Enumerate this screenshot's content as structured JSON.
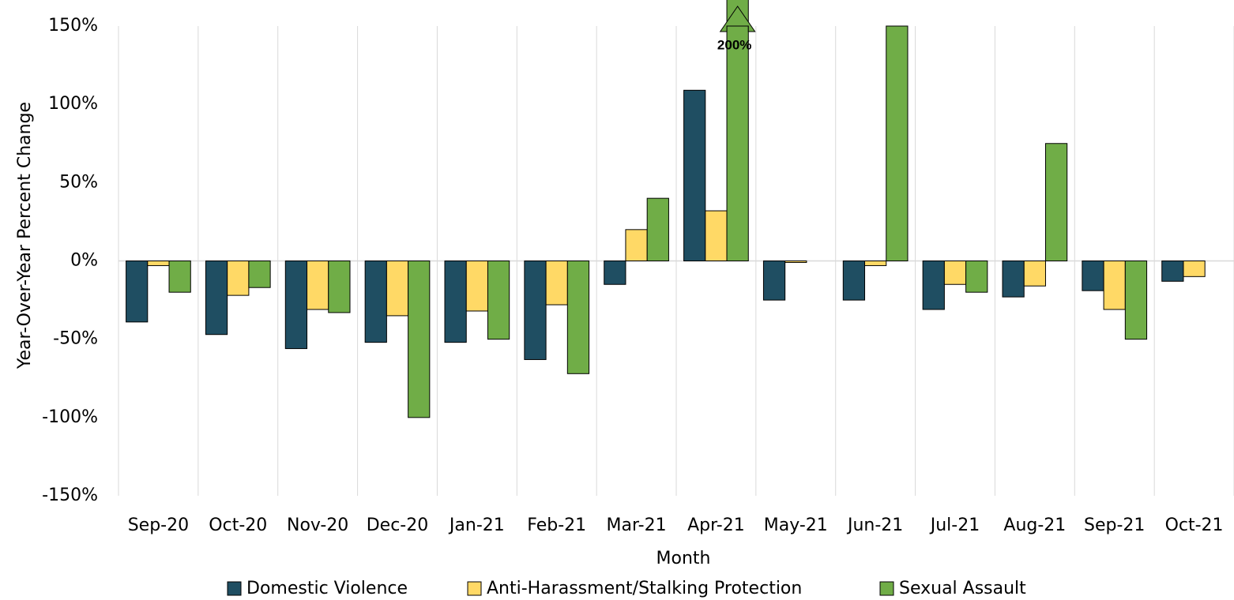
{
  "chart_data": {
    "type": "bar",
    "x_label": "Month",
    "y_label": "Year-Over-Year Percent Change",
    "categories": [
      "Sep-20",
      "Oct-20",
      "Nov-20",
      "Dec-20",
      "Jan-21",
      "Feb-21",
      "Mar-21",
      "Apr-21",
      "May-21",
      "Jun-21",
      "Jul-21",
      "Aug-21",
      "Sep-21",
      "Oct-21"
    ],
    "series": [
      {
        "name": "Domestic Violence",
        "color": "#1f4e62",
        "values": [
          -39,
          -47,
          -56,
          -52,
          -52,
          -63,
          -15,
          109,
          -25,
          -25,
          -31,
          -23,
          -19,
          -13
        ]
      },
      {
        "name": "Anti-Harassment/Stalking Protection",
        "color": "#ffd966",
        "values": [
          -3,
          -22,
          -31,
          -35,
          -32,
          -28,
          20,
          32,
          -1,
          -3,
          -15,
          -16,
          -31,
          -10
        ]
      },
      {
        "name": "Sexual Assault",
        "color": "#70ad47",
        "values": [
          -20,
          -17,
          -33,
          -100,
          -50,
          -72,
          40,
          200,
          null,
          150,
          -20,
          75,
          -50,
          null
        ],
        "value_labels": [
          null,
          null,
          null,
          null,
          null,
          null,
          null,
          "200%",
          null,
          null,
          null,
          null,
          null,
          null
        ]
      }
    ],
    "ylim": [
      -150,
      150
    ],
    "yticks": [
      {
        "value": -150,
        "label": "-150%"
      },
      {
        "value": -100,
        "label": "-100%"
      },
      {
        "value": -50,
        "label": "-50%"
      },
      {
        "value": 0,
        "label": "0%"
      },
      {
        "value": 50,
        "label": "50%"
      },
      {
        "value": 100,
        "label": "100%"
      },
      {
        "value": 150,
        "label": "150%"
      }
    ],
    "grid": true,
    "legend": "bottom"
  }
}
